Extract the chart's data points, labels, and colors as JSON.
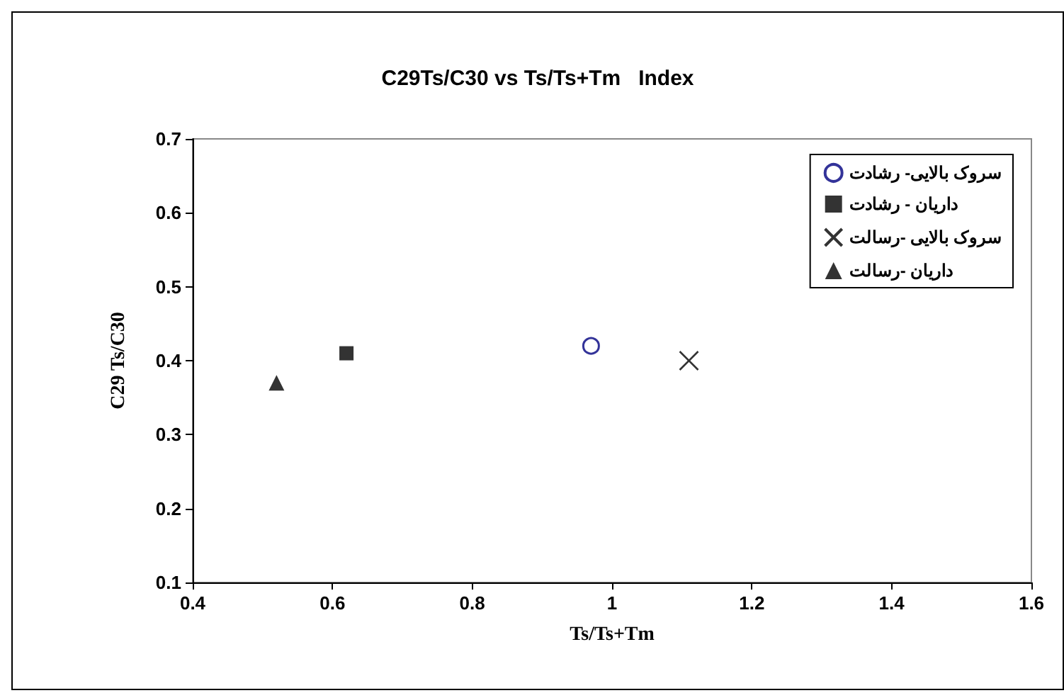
{
  "chart_data": {
    "type": "scatter",
    "title": "C29Ts/C30 vs Ts/Ts+Tm   Index",
    "xlabel": "Ts/Ts+Tm",
    "ylabel": "C29 Ts/C30",
    "series": [
      {
        "name": "سروک بالایی- رشادت",
        "color": "#000080",
        "marker": "circle",
        "x": [
          0.97
        ],
        "values": [
          0.42
        ]
      },
      {
        "name": "داریان - رشادت",
        "color": "#000000",
        "marker": "square",
        "x": [
          0.62
        ],
        "values": [
          0.41
        ]
      },
      {
        "name": "سروک بالایی -رسالت",
        "color": "#000000",
        "marker": "cross",
        "x": [
          1.11
        ],
        "values": [
          0.4
        ]
      },
      {
        "name": "داریان -رسالت",
        "color": "#000000",
        "marker": "triangle",
        "x": [
          0.52
        ],
        "values": [
          0.37
        ]
      }
    ],
    "xlim": [
      0.4,
      1.6
    ],
    "xticks": [
      0.4,
      0.6,
      0.8,
      1,
      1.2,
      1.4,
      1.6
    ],
    "ylim": [
      0.1,
      0.7
    ],
    "yticks": [
      0.1,
      0.2,
      0.3,
      0.4,
      0.5,
      0.6,
      0.7
    ],
    "grid": false,
    "legend": "top right"
  }
}
